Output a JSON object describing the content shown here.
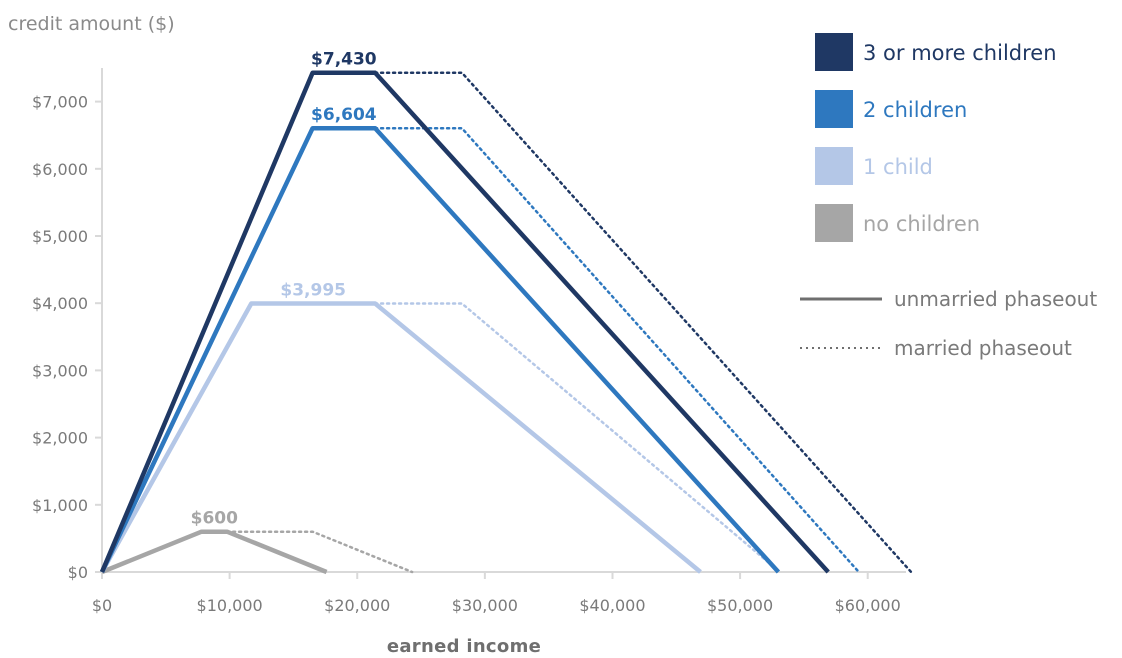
{
  "chart_data": {
    "type": "line",
    "ylabel": "credit amount ($)",
    "xlabel": "earned income",
    "xlim": [
      0,
      63000
    ],
    "ylim": [
      0,
      7500
    ],
    "x_ticks": [
      {
        "value": 0,
        "label": "$0"
      },
      {
        "value": 10000,
        "label": "$10,000"
      },
      {
        "value": 20000,
        "label": "$20,000"
      },
      {
        "value": 30000,
        "label": "$30,000"
      },
      {
        "value": 40000,
        "label": "$40,000"
      },
      {
        "value": 50000,
        "label": "$50,000"
      },
      {
        "value": 60000,
        "label": "$60,000"
      }
    ],
    "y_ticks": [
      {
        "value": 0,
        "label": "$0"
      },
      {
        "value": 1000,
        "label": "$1,000"
      },
      {
        "value": 2000,
        "label": "$2,000"
      },
      {
        "value": 3000,
        "label": "$3,000"
      },
      {
        "value": 4000,
        "label": "$4,000"
      },
      {
        "value": 5000,
        "label": "$5,000"
      },
      {
        "value": 6000,
        "label": "$6,000"
      },
      {
        "value": 7000,
        "label": "$7,000"
      }
    ],
    "series": [
      {
        "name": "3 or more children",
        "color": "#1f3864",
        "peak_label": "$7,430",
        "unmarried": [
          [
            0,
            0
          ],
          [
            16500,
            7430
          ],
          [
            21400,
            7430
          ],
          [
            56900,
            0
          ]
        ],
        "married": [
          [
            21400,
            7430
          ],
          [
            28200,
            7430
          ],
          [
            63400,
            0
          ]
        ]
      },
      {
        "name": "2 children",
        "color": "#2e78bf",
        "peak_label": "$6,604",
        "unmarried": [
          [
            0,
            0
          ],
          [
            16500,
            6604
          ],
          [
            21400,
            6604
          ],
          [
            53000,
            0
          ]
        ],
        "married": [
          [
            21400,
            6604
          ],
          [
            28200,
            6604
          ],
          [
            59300,
            0
          ]
        ]
      },
      {
        "name": "1 child",
        "color": "#b4c7e7",
        "peak_label": "$3,995",
        "unmarried": [
          [
            0,
            0
          ],
          [
            11700,
            3995
          ],
          [
            21400,
            3995
          ],
          [
            46900,
            0
          ]
        ],
        "married": [
          [
            21400,
            3995
          ],
          [
            28200,
            3995
          ],
          [
            53100,
            0
          ]
        ]
      },
      {
        "name": "no children",
        "color": "#a6a6a6",
        "peak_label": "$600",
        "unmarried": [
          [
            0,
            0
          ],
          [
            7800,
            600
          ],
          [
            9800,
            600
          ],
          [
            17600,
            0
          ]
        ],
        "married": [
          [
            9800,
            600
          ],
          [
            16500,
            600
          ],
          [
            24300,
            0
          ]
        ]
      }
    ],
    "line_styles": [
      {
        "label": "unmarried phaseout",
        "style": "solid",
        "color": "#6f6f6f"
      },
      {
        "label": "married phaseout",
        "style": "dotted",
        "color": "#6f6f6f"
      }
    ],
    "legend_position": "top-right",
    "grid": false
  }
}
